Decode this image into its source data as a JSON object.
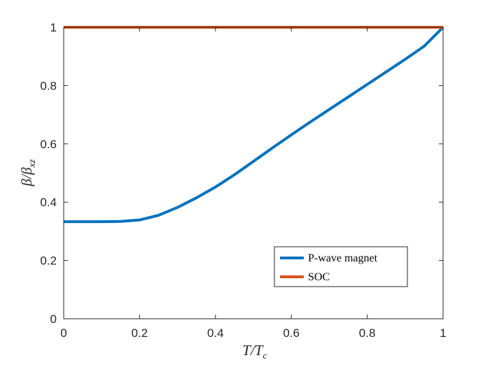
{
  "chart_data": {
    "type": "line",
    "xlabel": {
      "main": "T/T",
      "sub": "c"
    },
    "ylabel": {
      "part1": "β/β",
      "sub": "xz"
    },
    "xlim": [
      0,
      1
    ],
    "ylim": [
      0,
      1
    ],
    "xticks": [
      "0",
      "0.2",
      "0.4",
      "0.6",
      "0.8",
      "1"
    ],
    "yticks": [
      "0",
      "0.2",
      "0.4",
      "0.6",
      "0.8",
      "1"
    ],
    "grid": false,
    "legend_position": "bottom-right",
    "series": [
      {
        "name": "P-wave magnet",
        "color": "#0072BD",
        "x": [
          0,
          0.05,
          0.1,
          0.15,
          0.2,
          0.25,
          0.3,
          0.35,
          0.4,
          0.45,
          0.5,
          0.55,
          0.6,
          0.65,
          0.7,
          0.75,
          0.8,
          0.85,
          0.9,
          0.95,
          1.0
        ],
        "y": [
          0.333,
          0.333,
          0.333,
          0.334,
          0.339,
          0.355,
          0.382,
          0.415,
          0.452,
          0.494,
          0.54,
          0.586,
          0.631,
          0.675,
          0.718,
          0.761,
          0.804,
          0.847,
          0.89,
          0.935,
          1.0
        ]
      },
      {
        "name": "SOC",
        "color": "#D95319",
        "x": [
          0,
          1
        ],
        "y": [
          1,
          1
        ]
      }
    ]
  }
}
